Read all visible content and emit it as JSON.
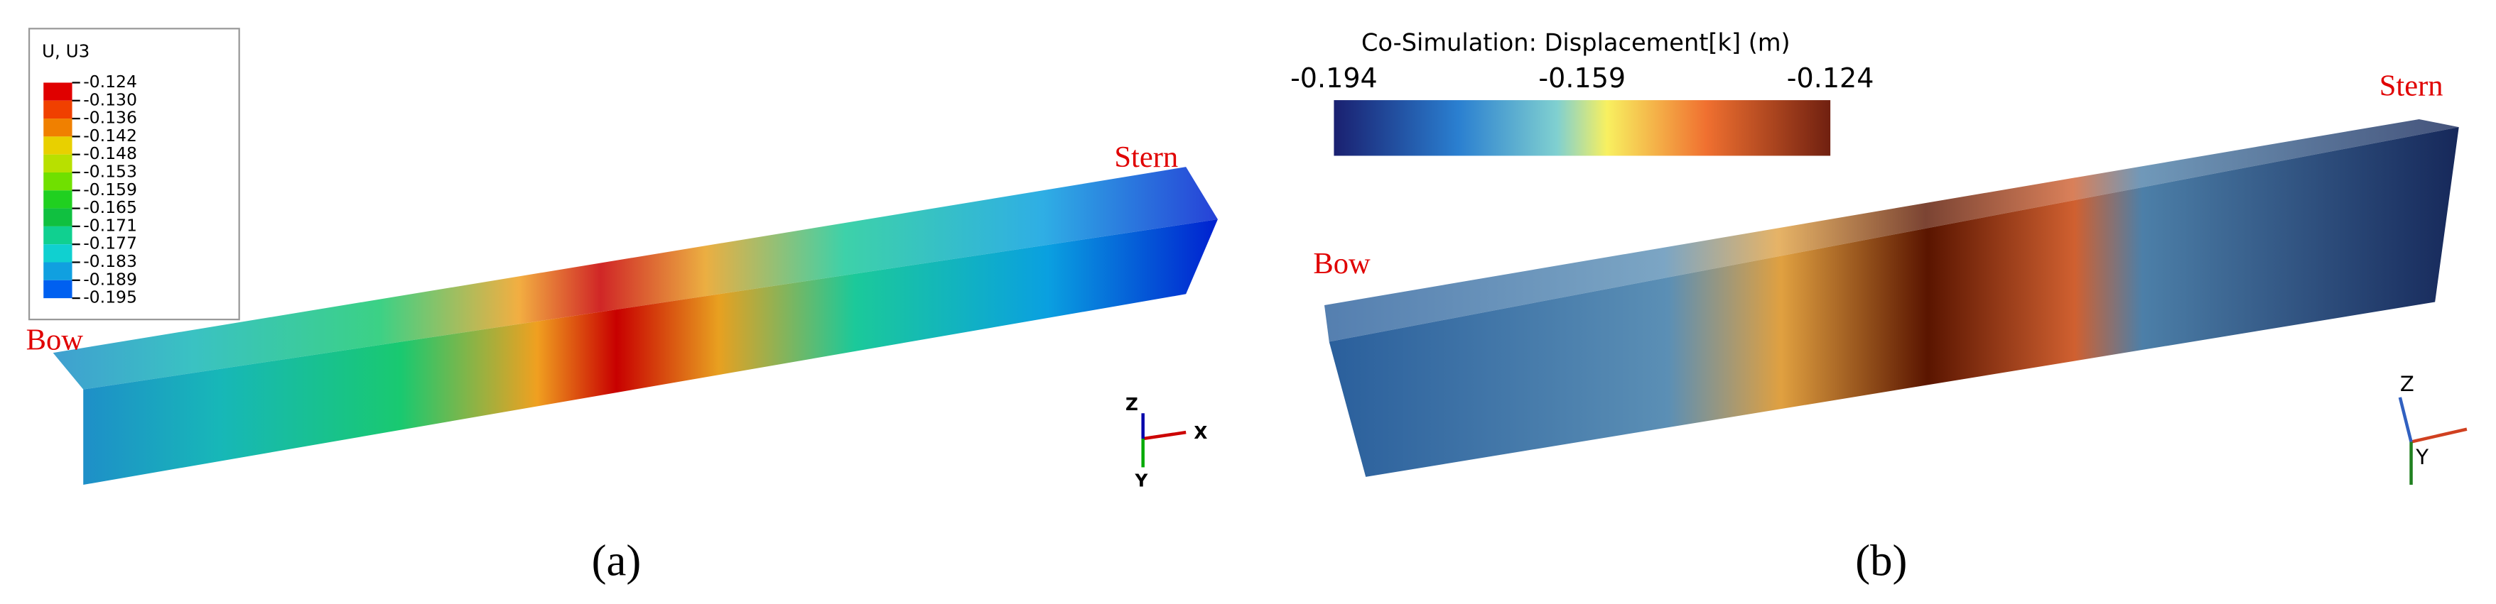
{
  "panel_a": {
    "legend_title": "U, U3",
    "legend_labels": [
      "-0.124",
      "-0.130",
      "-0.136",
      "-0.142",
      "-0.148",
      "-0.153",
      "-0.159",
      "-0.165",
      "-0.171",
      "-0.177",
      "-0.183",
      "-0.189",
      "-0.195"
    ],
    "stern": "Stern",
    "bow": "Bow",
    "axis_z": "Z",
    "axis_x": "X",
    "axis_y": "Y",
    "caption": "(a)"
  },
  "panel_b": {
    "colorbar_title": "Co-Simulation: Displacement[k] (m)",
    "colorbar_labels": [
      "-0.194",
      "-0.159",
      "-0.124"
    ],
    "stern": "Stern",
    "bow": "Bow",
    "axis_z": "Z",
    "axis_y": "Y",
    "caption": "(b)"
  }
}
